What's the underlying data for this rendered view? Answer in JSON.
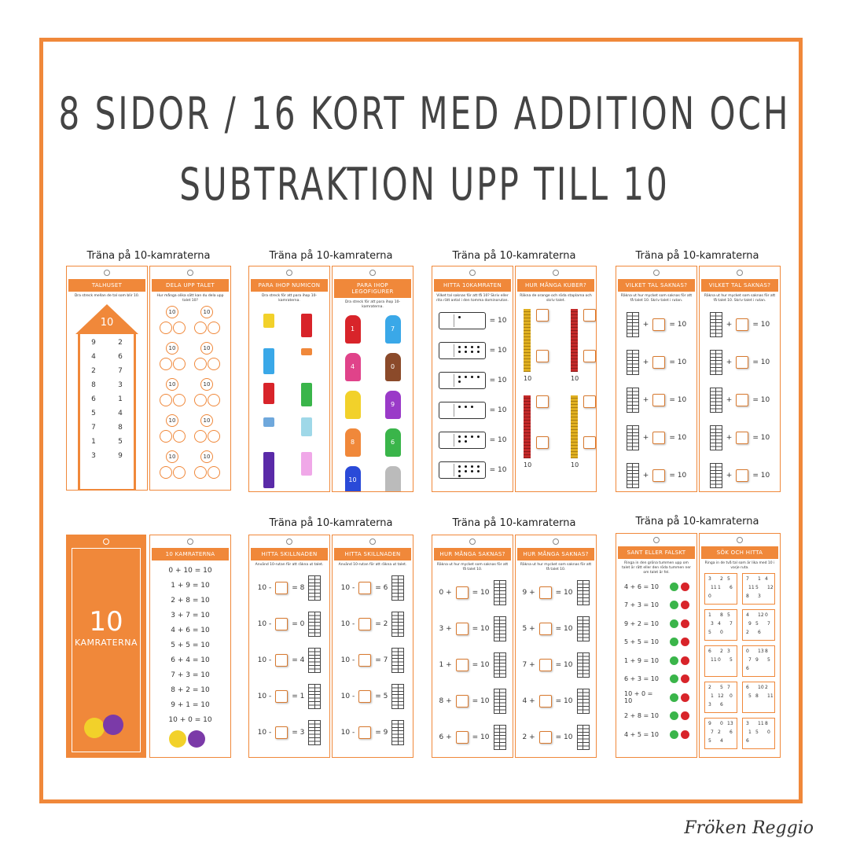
{
  "title_line1": "8 sidor / 16 kort med addition och",
  "title_line2": "subtraktion upp till 10",
  "group_label": "Träna på 10-kamraterna",
  "signature": "Fröken Reggio",
  "colors": {
    "accent": "#f0883a"
  },
  "row1": {
    "c1": {
      "header": "Talhuset",
      "instruction": "Dra streck mellan de tal som blir 10.",
      "roof": "10",
      "pairs": [
        [
          "9",
          "2"
        ],
        [
          "4",
          "6"
        ],
        [
          "2",
          "7"
        ],
        [
          "8",
          "3"
        ],
        [
          "6",
          "1"
        ],
        [
          "5",
          "4"
        ],
        [
          "7",
          "8"
        ],
        [
          "1",
          "5"
        ],
        [
          "3",
          "9"
        ]
      ]
    },
    "c2": {
      "header": "Dela upp talet",
      "instruction": "Hur många olika sätt kan du dela upp talet 10?",
      "num": "10"
    },
    "c3": {
      "header": "Para ihop Numicon",
      "instruction": "Dra streck för att para ihop 10-kamraterna."
    },
    "c4": {
      "header": "Para ihop Legofigurer",
      "instruction": "Dra streck för att para ihop 10-kamraterna.",
      "left": [
        "1",
        "4",
        "",
        "8",
        "10"
      ],
      "right": [
        "7",
        "0",
        "9",
        "6",
        ""
      ]
    },
    "c5": {
      "header": "Hitta 10kamraten",
      "instruction": "Vilket tal saknas för att få 10? Skriv eller rita rätt antal i den tomma dominorutan.",
      "eq": "= 10"
    },
    "c6": {
      "header": "Hur många kuber?",
      "instruction": "Räkna de orange och röda staplarna och skriv talet.",
      "num": "10"
    },
    "c7": {
      "header": "Vilket tal saknas?",
      "instruction": "Räkna ut hur mycket som saknas för att få talet 10. Skriv talet i rutan.",
      "op": "+",
      "eq": "= 10"
    },
    "c8": {
      "header": "Vilket tal saknas?",
      "instruction": "Räkna ut hur mycket som saknas för att få talet 10. Skriv talet i rutan.",
      "op": "+",
      "eq": "= 10"
    }
  },
  "row2": {
    "cover": {
      "big": "10",
      "sub": "KAMRATERNA"
    },
    "c2": {
      "header": "10 kamraterna",
      "lines": [
        "0 + 10 = 10",
        "1 + 9 = 10",
        "2 + 8 = 10",
        "3 + 7 = 10",
        "4 + 6 = 10",
        "5 + 5 = 10",
        "6 + 4 = 10",
        "7 + 3 = 10",
        "8 + 2 = 10",
        "9 + 1 = 10",
        "10 + 0 = 10"
      ]
    },
    "c3": {
      "header": "Hitta skillnaden",
      "instruction": "Använd 10-rutan för att räkna ut talet.",
      "start": "10 -",
      "results": [
        "= 8",
        "= 0",
        "= 4",
        "= 1",
        "= 3"
      ]
    },
    "c4": {
      "header": "Hitta skillnaden",
      "instruction": "Använd 10-rutan för att räkna ut talet.",
      "start": "10 -",
      "results": [
        "= 6",
        "= 2",
        "= 7",
        "= 5",
        "= 9"
      ]
    },
    "c5": {
      "header": "Hur många saknas?",
      "instruction": "Räkna ut hur mycket som saknas för att få talet 10.",
      "starts": [
        "0 +",
        "3 +",
        "1 +",
        "8 +",
        "6 +"
      ],
      "eq": "= 10"
    },
    "c6": {
      "header": "Hur många saknas?",
      "instruction": "Räkna ut hur mycket som saknas för att få talet 10.",
      "starts": [
        "9 +",
        "5 +",
        "7 +",
        "4 +",
        "2 +"
      ],
      "eq": "= 10"
    },
    "c7": {
      "header": "Sant eller Falskt",
      "instruction": "Ringa in den gröna tummen upp om talet är rätt eller den röda tummen ner om talet är fel.",
      "lines": [
        "4 + 6 = 10",
        "7 + 3 = 10",
        "9 + 2 = 10",
        "5 + 5 = 10",
        "1 + 9 = 10",
        "6 + 3 = 10",
        "10 + 0 = 10",
        "2 + 8 = 10",
        "4 + 5 = 10"
      ]
    },
    "c8": {
      "header": "Sök och Hitta",
      "instruction": "Ringa in de två tal som är lika med 10 i varje ruta.",
      "boxes": [
        [
          "3",
          "2",
          "5",
          "11",
          "1",
          "6",
          "0"
        ],
        [
          "7",
          "1",
          "4",
          "11",
          "5",
          "12",
          "8",
          "3"
        ],
        [
          "1",
          "8",
          "5",
          "3",
          "4",
          "7",
          "5",
          "0"
        ],
        [
          "4",
          "12",
          "0",
          "9",
          "5",
          "7",
          "2",
          "6"
        ],
        [
          "6",
          "2",
          "3",
          "11",
          "0",
          "5"
        ],
        [
          "0",
          "13",
          "8",
          "7",
          "9",
          "5",
          "6"
        ],
        [
          "2",
          "5",
          "7",
          "1",
          "12",
          "0",
          "3",
          "6"
        ],
        [
          "6",
          "10",
          "2",
          "5",
          "8",
          "11"
        ],
        [
          "9",
          "0",
          "13",
          "7",
          "2",
          "6",
          "5",
          "4"
        ],
        [
          "3",
          "11",
          "8",
          "1",
          "5",
          "0",
          "6"
        ]
      ]
    }
  }
}
